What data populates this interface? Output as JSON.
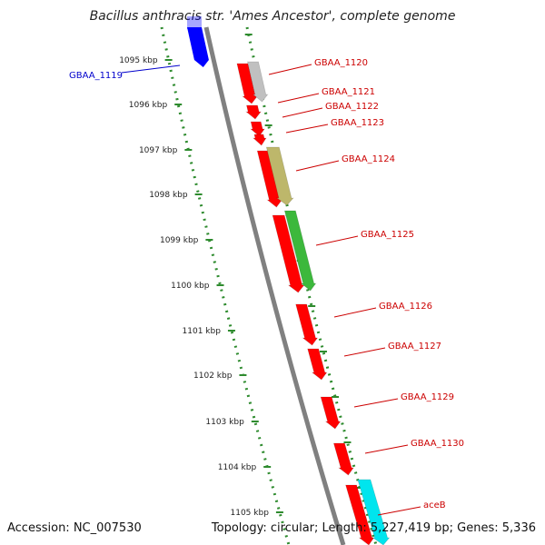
{
  "title": "Bacillus anthracis str. 'Ames Ancestor', complete genome",
  "footer": {
    "accession": "Accession: NC_007530",
    "topology": "Topology: circular; Length: 5,227,419 bp; Genes: 5,336"
  },
  "scale": {
    "unit": "kbp",
    "ticks": [
      "1095 kbp",
      "1096 kbp",
      "1097 kbp",
      "1098 kbp",
      "1099 kbp",
      "1100 kbp",
      "1101 kbp",
      "1102 kbp",
      "1103 kbp",
      "1104 kbp",
      "1105 kbp"
    ]
  },
  "colors": {
    "cds": "#ff0000",
    "backbone": "#808080",
    "ruler": "#2e8b2e",
    "label_forward": "#cc0000",
    "label_reverse": "#0000cc",
    "gene_reverse": "#0000ff",
    "gene_gray": "#c0c0c0",
    "gene_khaki": "#bdb76b",
    "gene_green": "#3cb83c",
    "gene_cyan": "#00e5ee"
  },
  "genes": [
    {
      "name": "GBAA_1119",
      "strand": "-",
      "color": "gene_reverse"
    },
    {
      "name": "GBAA_1120",
      "strand": "+",
      "color": "gene_gray"
    },
    {
      "name": "GBAA_1121",
      "strand": "+",
      "color": "cds"
    },
    {
      "name": "GBAA_1122",
      "strand": "+",
      "color": "cds"
    },
    {
      "name": "GBAA_1123",
      "strand": "+",
      "color": "cds"
    },
    {
      "name": "GBAA_1124",
      "strand": "+",
      "color": "gene_khaki"
    },
    {
      "name": "GBAA_1125",
      "strand": "+",
      "color": "gene_green"
    },
    {
      "name": "GBAA_1126",
      "strand": "+",
      "color": "cds"
    },
    {
      "name": "GBAA_1127",
      "strand": "+",
      "color": "cds"
    },
    {
      "name": "GBAA_1129",
      "strand": "+",
      "color": "cds"
    },
    {
      "name": "GBAA_1130",
      "strand": "+",
      "color": "cds"
    },
    {
      "name": "aceB",
      "strand": "+",
      "color": "gene_cyan"
    }
  ]
}
